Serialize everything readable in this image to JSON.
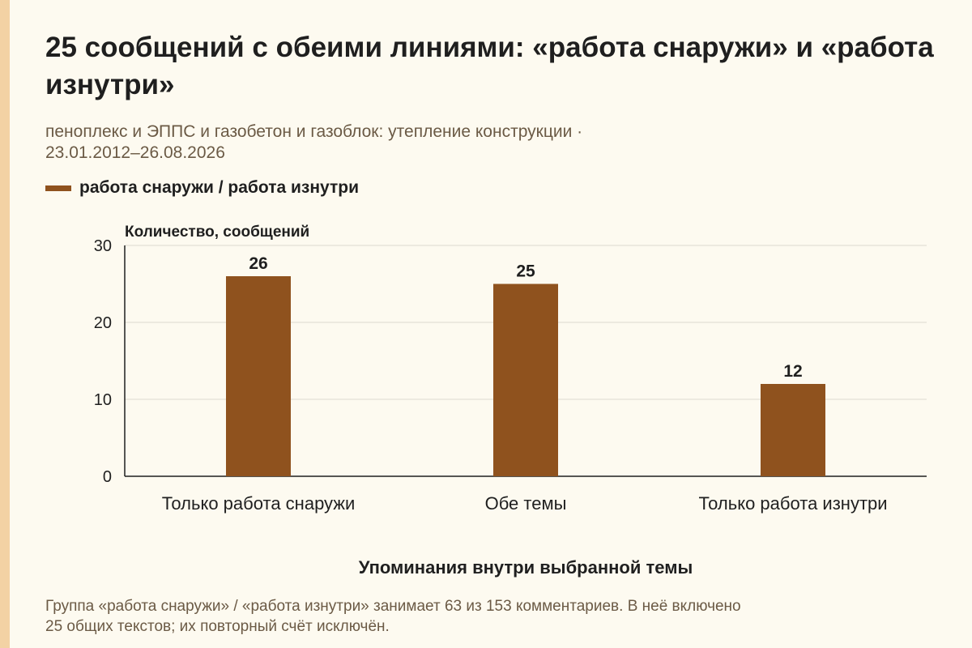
{
  "title": "25 сообщений с обеими линиями: «работа снаружи» и «работа изнутри»",
  "subtitle_line1": "пеноплекс и ЭППС и газобетон и газоблок: утепление конструкции ·",
  "subtitle_line2": "23.01.2012–26.08.2026",
  "footnote_line1": "Группа «работа снаружи» / «работа изнутри» занимает 63 из 153 комментариев. В неё включено",
  "footnote_line2": "25 общих текстов; их повторный счёт исключён.",
  "colors": {
    "bar": "#8f521e",
    "legend_swatch": "#8f521e",
    "accent_strip": "#f3d2a4"
  },
  "chart_data": {
    "type": "bar",
    "categories": [
      "Только работа снаружи",
      "Обе темы",
      "Только работа изнутри"
    ],
    "series": [
      {
        "name": "работа снаружи / работа изнутри",
        "values": [
          26,
          25,
          12
        ]
      }
    ],
    "ylabel": "Количество, сообщений",
    "xlabel": "Упоминания внутри выбранной темы",
    "ylim": [
      0,
      30
    ],
    "yticks": [
      0,
      10,
      20,
      30
    ],
    "grid": true,
    "legend": "top-left"
  }
}
